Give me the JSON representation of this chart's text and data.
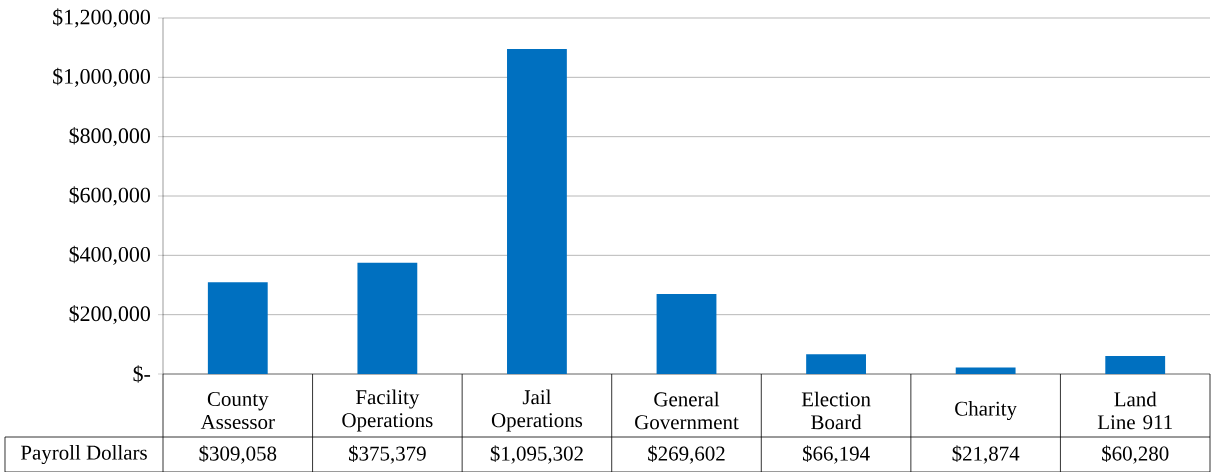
{
  "chart_data": {
    "type": "bar",
    "categories": [
      "County Assessor",
      "Facility Operations",
      "Jail Operations",
      "General Government",
      "Election Board",
      "Charity",
      "Land Line 911"
    ],
    "series": [
      {
        "name": "Payroll Dollars",
        "color": "#0070c0",
        "values": [
          309058,
          375379,
          1095302,
          269602,
          66194,
          21874,
          60280
        ],
        "value_labels": [
          "$309,058",
          "$375,379",
          "$1,095,302",
          "$269,602",
          "$66,194",
          "$21,874",
          "$60,280"
        ]
      }
    ],
    "ylim": [
      0,
      1200000
    ],
    "yticks": [
      {
        "value": 0,
        "label": "$-"
      },
      {
        "value": 200000,
        "label": "$200,000"
      },
      {
        "value": 400000,
        "label": "$400,000"
      },
      {
        "value": 600000,
        "label": "$600,000"
      },
      {
        "value": 800000,
        "label": "$800,000"
      },
      {
        "value": 1000000,
        "label": "$1,000,000"
      },
      {
        "value": 1200000,
        "label": "$1,200,000"
      }
    ],
    "grid": "y"
  }
}
